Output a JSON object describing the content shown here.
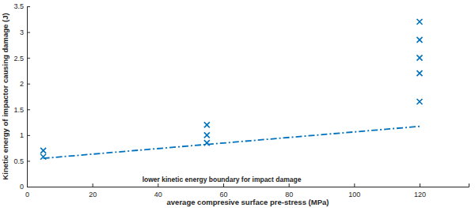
{
  "chart_data": {
    "type": "scatter",
    "xlabel": "average compresive surface pre-stress (MPa)",
    "ylabel": "Kinetic energy of impactor causing damage (J)",
    "annotation": "lower kinetic energy boundary for impact damage",
    "xlim": [
      0,
      135
    ],
    "xticks": [
      0,
      20,
      40,
      60,
      80,
      100,
      120
    ],
    "ylim": [
      0,
      3.5
    ],
    "yticks": [
      0,
      0.5,
      1,
      1.5,
      2,
      2.5,
      3,
      3.5
    ],
    "grid": false,
    "series": [
      {
        "type": "scatter",
        "marker": "x",
        "color": "#0072bd",
        "x": [
          5,
          5,
          55,
          55,
          55,
          120,
          120,
          120,
          120,
          120
        ],
        "values": [
          0.7,
          0.58,
          1.2,
          1.0,
          0.85,
          3.2,
          2.85,
          2.5,
          2.2,
          1.65
        ]
      },
      {
        "type": "line",
        "line_style": "dashdot",
        "color": "#0072bd",
        "x": [
          5,
          120
        ],
        "values": [
          0.55,
          1.17
        ]
      }
    ]
  }
}
